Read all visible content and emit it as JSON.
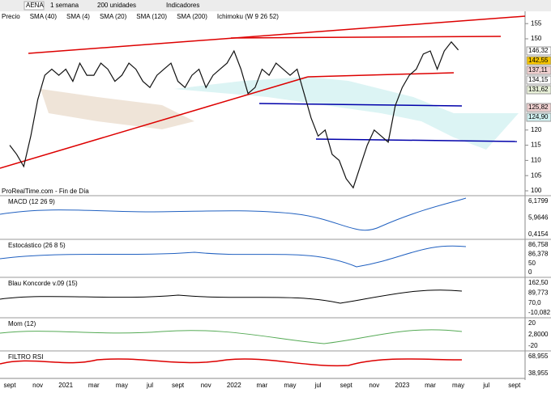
{
  "toolbar": {
    "symbol": "AENA",
    "period": "1 semana",
    "units": "200 unidades",
    "indicators": "Indicadores"
  },
  "legend": [
    "Precio",
    "SMA (40)",
    "SMA (4)",
    "SMA (20)",
    "SMA (120)",
    "SMA (200)",
    "Ichimoku (W 9 26 52)"
  ],
  "source": "ProRealTime.com - Fin de Día",
  "price": {
    "yticks": [
      100,
      105,
      110,
      115,
      120,
      150,
      155
    ],
    "labels": [
      {
        "text": "146,32",
        "color": "#ffffff"
      },
      {
        "text": "142,55",
        "color": "#f5c400"
      },
      {
        "text": "137,11",
        "color": "#f0d0d0"
      },
      {
        "text": "134,15",
        "color": "#ffffff"
      },
      {
        "text": "131,62",
        "color": "#e8f0d8"
      },
      {
        "text": "125,82",
        "color": "#f0d0d0"
      },
      {
        "text": "124,90",
        "color": "#d0f0f0"
      }
    ],
    "x": [
      0,
      0.5,
      1,
      1.5,
      2,
      2.5,
      3,
      3.5,
      4,
      4.5,
      5,
      5.5,
      6,
      6.5,
      7,
      7.5,
      8,
      8.5,
      9,
      9.5,
      10,
      10.5,
      11,
      11.5,
      12,
      12.5,
      13,
      13.5,
      14,
      14.5,
      15,
      15.5,
      16,
      16.5,
      17,
      17.5,
      18,
      18.5,
      19,
      19.5,
      20,
      20.5,
      21,
      21.5,
      22,
      22.5,
      23,
      23.5,
      24,
      24.5,
      25,
      25.5,
      26,
      26.5,
      27,
      27.5,
      28,
      28.5,
      29,
      29.5,
      30,
      30.5,
      31,
      31.5,
      32
    ],
    "values": [
      115,
      112,
      108,
      118,
      130,
      138,
      140,
      138,
      140,
      136,
      142,
      138,
      138,
      142,
      140,
      136,
      138,
      142,
      140,
      136,
      134,
      138,
      140,
      142,
      136,
      134,
      138,
      140,
      134,
      138,
      140,
      142,
      146,
      140,
      132,
      134,
      140,
      138,
      142,
      140,
      138,
      140,
      132,
      124,
      118,
      120,
      112,
      110,
      104,
      101,
      108,
      115,
      120,
      118,
      116,
      128,
      134,
      138,
      140,
      145,
      146,
      140,
      146,
      149,
      146.32
    ]
  },
  "panels": [
    {
      "title": "MACD (12 26 9)",
      "labels": [
        "6,1799",
        "5,9646",
        "0,4154"
      ]
    },
    {
      "title": "Estocástico (26 8 5)",
      "labels": [
        "86,758",
        "86,378",
        "50",
        "0"
      ]
    },
    {
      "title": "Blau Koncorde v.09 (15)",
      "labels": [
        "162,50",
        "89,773",
        "70,0",
        "-10,082"
      ]
    },
    {
      "title": "Mom (12)",
      "labels": [
        "20",
        "2,8000",
        "-20"
      ]
    },
    {
      "title": "FILTRO RSI",
      "labels": [
        "68,955",
        "38,955"
      ]
    }
  ],
  "xlabels": [
    "sept",
    "nov",
    "2021",
    "mar",
    "may",
    "jul",
    "sept",
    "nov",
    "2022",
    "mar",
    "may",
    "jul",
    "sept",
    "nov",
    "2023",
    "mar",
    "may",
    "jul",
    "sept"
  ]
}
